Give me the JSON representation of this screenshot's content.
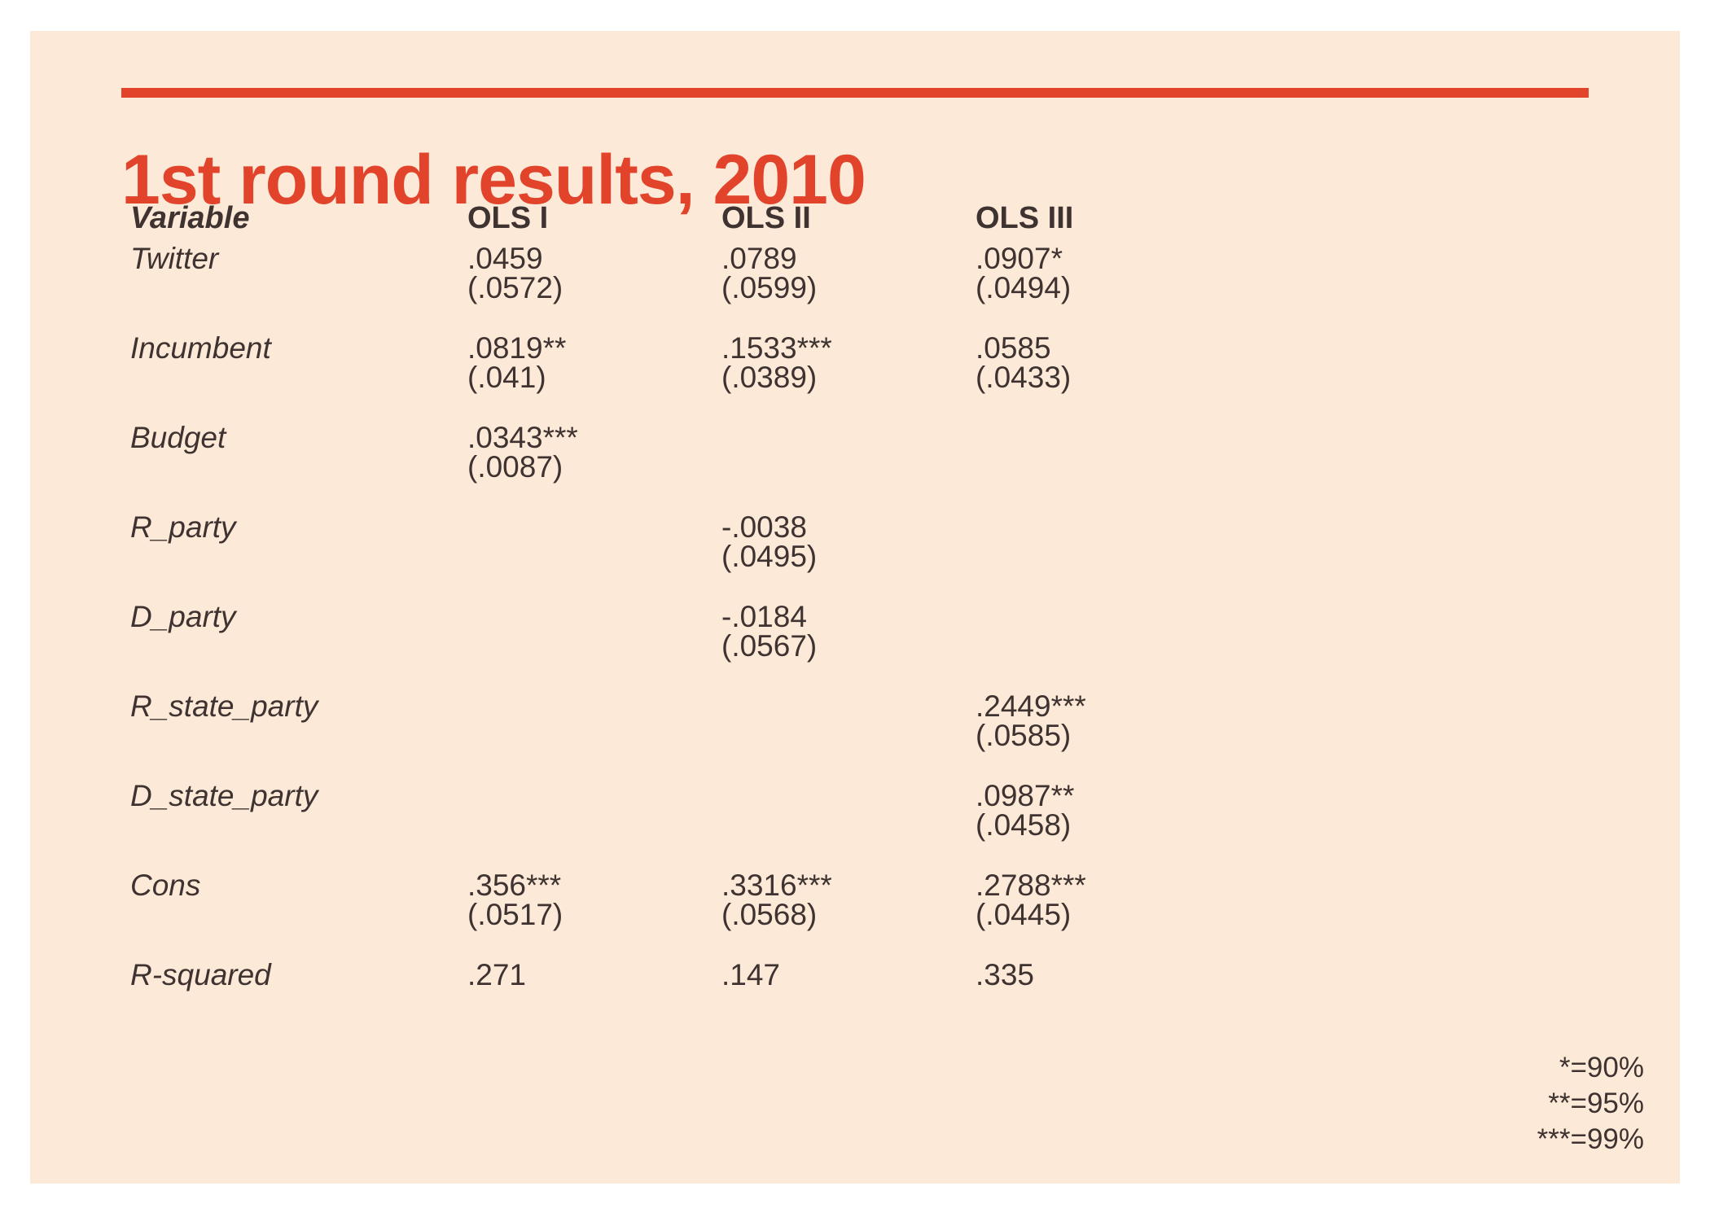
{
  "title": "1st round results, 2010",
  "columns": [
    "Variable",
    "OLS I",
    "OLS II",
    "OLS III"
  ],
  "rows": [
    {
      "name": "Twitter",
      "cells": [
        {
          "coef": ".0459",
          "se": "(.0572)"
        },
        {
          "coef": ".0789",
          "se": "(.0599)"
        },
        {
          "coef": ".0907*",
          "se": "(.0494)"
        }
      ]
    },
    {
      "name": "Incumbent",
      "cells": [
        {
          "coef": ".0819**",
          "se": "(.041)"
        },
        {
          "coef": ".1533***",
          "se": "(.0389)"
        },
        {
          "coef": ".0585",
          "se": "(.0433)"
        }
      ]
    },
    {
      "name": "Budget",
      "cells": [
        {
          "coef": ".0343***",
          "se": "(.0087)"
        },
        {
          "coef": "",
          "se": ""
        },
        {
          "coef": "",
          "se": ""
        }
      ]
    },
    {
      "name": "R_party",
      "cells": [
        {
          "coef": "",
          "se": ""
        },
        {
          "coef": "-.0038",
          "se": "(.0495)"
        },
        {
          "coef": "",
          "se": ""
        }
      ]
    },
    {
      "name": "D_party",
      "cells": [
        {
          "coef": "",
          "se": ""
        },
        {
          "coef": "-.0184",
          "se": "(.0567)"
        },
        {
          "coef": "",
          "se": ""
        }
      ]
    },
    {
      "name": "R_state_party",
      "cells": [
        {
          "coef": "",
          "se": ""
        },
        {
          "coef": "",
          "se": ""
        },
        {
          "coef": ".2449***",
          "se": "(.0585)"
        }
      ]
    },
    {
      "name": "D_state_party",
      "cells": [
        {
          "coef": "",
          "se": ""
        },
        {
          "coef": "",
          "se": ""
        },
        {
          "coef": ".0987**",
          "se": "(.0458)"
        }
      ]
    },
    {
      "name": "Cons",
      "cells": [
        {
          "coef": ".356***",
          "se": "(.0517)"
        },
        {
          "coef": ".3316***",
          "se": "(.0568)"
        },
        {
          "coef": ".2788***",
          "se": "(.0445)"
        }
      ]
    },
    {
      "name": "R-squared",
      "cells": [
        {
          "coef": ".271",
          "se": ""
        },
        {
          "coef": ".147",
          "se": ""
        },
        {
          "coef": ".335",
          "se": ""
        }
      ]
    }
  ],
  "legend": [
    "*=90%",
    "**=95%",
    "***=99%"
  ],
  "colors": {
    "accent": "#e2432b",
    "background": "#fde9d8",
    "text": "#3e3330"
  }
}
